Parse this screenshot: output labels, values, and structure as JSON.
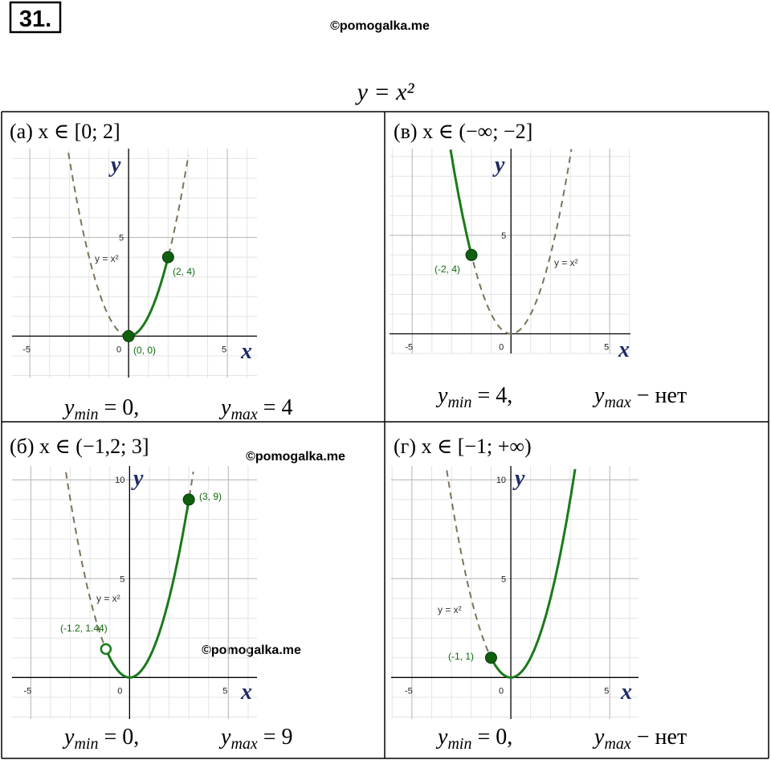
{
  "header": {
    "number": "31.",
    "watermark": "©pomogalka.me",
    "formula": "y = x²"
  },
  "watermarks": [
    "©pomogalka.me",
    "©pomogalka.me"
  ],
  "panels": [
    {
      "label": "(а) x ∈ [0; 2]",
      "graph": {
        "xlim": [
          -5.9,
          6.5
        ],
        "ylim": [
          -2.1,
          9.5
        ],
        "xticks": [
          -5,
          0,
          5
        ],
        "yticks": [
          5
        ],
        "x_label": "x",
        "y_label": "y",
        "curve_label": "y = x²",
        "domain": [
          0,
          2
        ],
        "points": [
          {
            "x": 0,
            "y": 0,
            "label": "(0, 0)",
            "open": false
          },
          {
            "x": 2,
            "y": 4,
            "label": "(2, 4)",
            "open": false
          }
        ]
      },
      "results": [
        {
          "symbol": "y",
          "subscript": "min",
          "text": " = 0,"
        },
        {
          "symbol": "y",
          "subscript": "max",
          "text": " = 4"
        }
      ]
    },
    {
      "label": "(в) x ∈ (−∞; −2]",
      "graph": {
        "xlim": [
          -6.15,
          6.05
        ],
        "ylim": [
          -1,
          9.4
        ],
        "xticks": [
          -5,
          0,
          5
        ],
        "yticks": [
          5
        ],
        "x_label": "x",
        "y_label": "y",
        "curve_label": "y = x²",
        "domain": [
          null,
          -2
        ],
        "points": [
          {
            "x": -2,
            "y": 4,
            "label": "(-2, 4)",
            "open": false
          }
        ]
      },
      "results": [
        {
          "symbol": "y",
          "subscript": "min",
          "text": " = 4,"
        },
        {
          "symbol": "y",
          "subscript": "max",
          "text": " − нет"
        }
      ]
    },
    {
      "label": "(б) x ∈ (−1,2; 3]",
      "graph": {
        "xlim": [
          -5.95,
          6.45
        ],
        "ylim": [
          -2.1,
          10.7
        ],
        "xticks": [
          -5,
          0,
          5
        ],
        "yticks": [
          5,
          10
        ],
        "x_label": "x",
        "y_label": "y",
        "curve_label": "y = x²",
        "domain": [
          -1.2,
          3
        ],
        "points": [
          {
            "x": 3,
            "y": 9,
            "label": "(3, 9)",
            "open": false
          },
          {
            "x": -1.2,
            "y": 1.44,
            "label": "(-1.2, 1.44)",
            "open": true
          }
        ]
      },
      "results": [
        {
          "symbol": "y",
          "subscript": "min",
          "text": " = 0,"
        },
        {
          "symbol": "y",
          "subscript": "max",
          "text": " = 9"
        }
      ]
    },
    {
      "label": "(г) x ∈ [−1; +∞)",
      "graph": {
        "xlim": [
          -6.05,
          6.45
        ],
        "ylim": [
          -2.1,
          10.7
        ],
        "xticks": [
          -5,
          0,
          5
        ],
        "yticks": [
          5,
          10
        ],
        "x_label": "x",
        "y_label": "y",
        "curve_label": "y = x²",
        "domain": [
          -1,
          null
        ],
        "points": [
          {
            "x": -1,
            "y": 1,
            "label": "(-1, 1)",
            "open": false
          }
        ]
      },
      "results": [
        {
          "symbol": "y",
          "subscript": "min",
          "text": " = 0,"
        },
        {
          "symbol": "y",
          "subscript": "max",
          "text": " − нет"
        }
      ]
    }
  ]
}
